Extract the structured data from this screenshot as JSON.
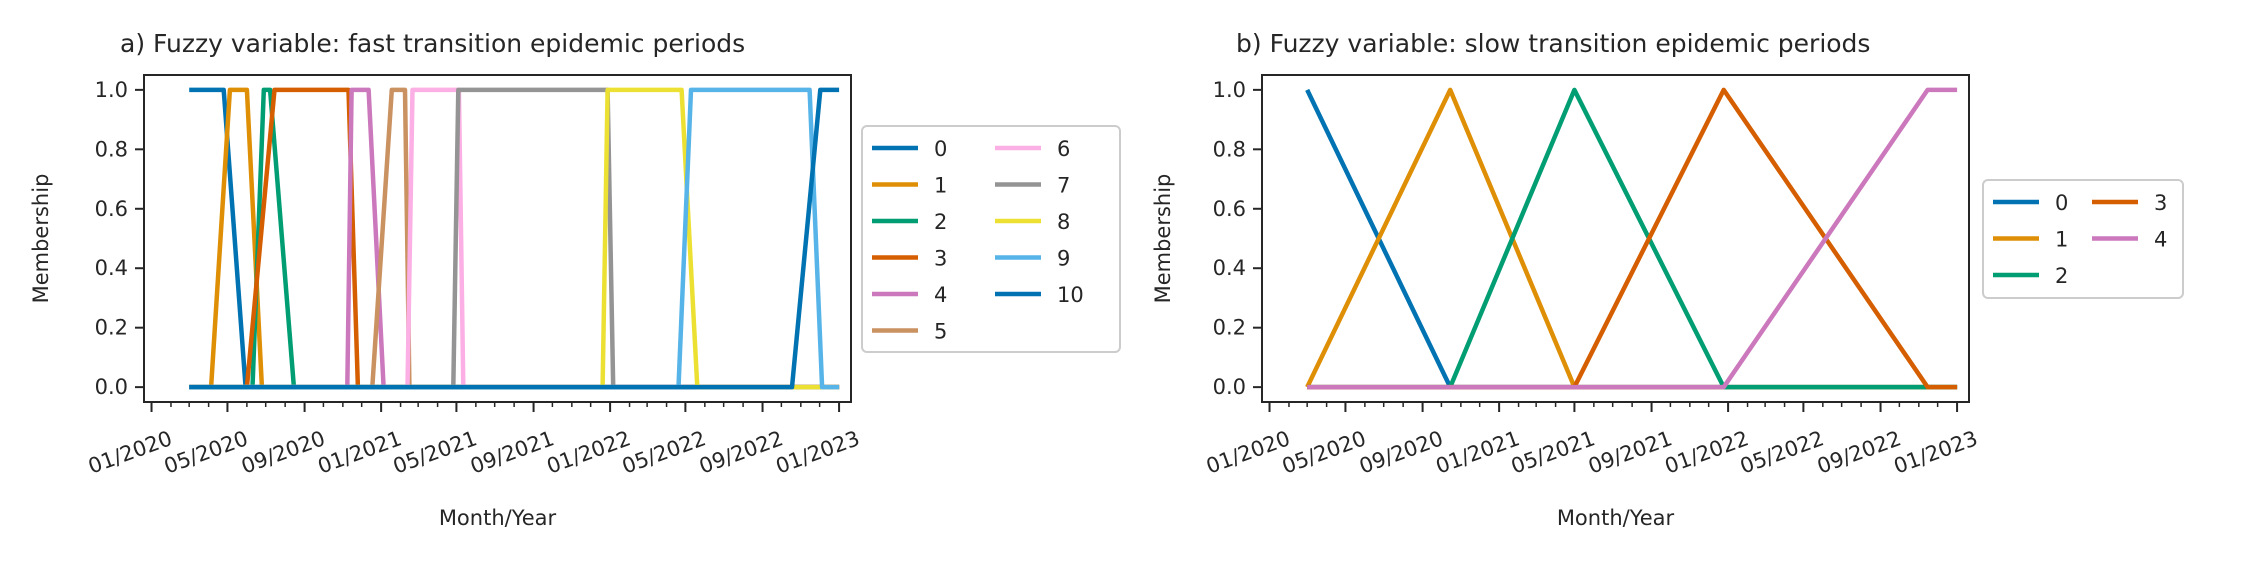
{
  "chart_data": [
    {
      "type": "line",
      "title": "a) Fuzzy variable: fast transition epidemic periods",
      "xlabel": "Month/Year",
      "ylabel": "Membership",
      "ylim": [
        -0.05,
        1.05
      ],
      "x_ticks": [
        "01/2020",
        "05/2020",
        "09/2020",
        "01/2021",
        "05/2021",
        "09/2021",
        "01/2022",
        "05/2022",
        "09/2022",
        "01/2023"
      ],
      "y_ticks": [
        "0.0",
        "0.2",
        "0.4",
        "0.6",
        "0.8",
        "1.0"
      ],
      "legend": {
        "placement": "outside-right",
        "columns": 2
      },
      "series": [
        {
          "name": "0",
          "color": "#0173b2",
          "points": [
            [
              "2020-03-01",
              1
            ],
            [
              "2020-04-25",
              1
            ],
            [
              "2020-05-30",
              0
            ],
            [
              "2023-01-01",
              0
            ]
          ]
        },
        {
          "name": "1",
          "color": "#de8f05",
          "points": [
            [
              "2020-03-01",
              0
            ],
            [
              "2020-04-05",
              0
            ],
            [
              "2020-05-05",
              1
            ],
            [
              "2020-06-01",
              1
            ],
            [
              "2020-06-25",
              0
            ],
            [
              "2023-01-01",
              0
            ]
          ]
        },
        {
          "name": "2",
          "color": "#029e73",
          "points": [
            [
              "2020-03-01",
              0
            ],
            [
              "2020-06-10",
              0
            ],
            [
              "2020-06-28",
              1
            ],
            [
              "2020-07-08",
              1
            ],
            [
              "2020-08-15",
              0
            ],
            [
              "2023-01-01",
              0
            ]
          ]
        },
        {
          "name": "3",
          "color": "#d55e00",
          "points": [
            [
              "2020-03-01",
              0
            ],
            [
              "2020-06-01",
              0
            ],
            [
              "2020-07-15",
              1
            ],
            [
              "2020-11-10",
              1
            ],
            [
              "2020-11-25",
              0
            ],
            [
              "2023-01-01",
              0
            ]
          ]
        },
        {
          "name": "4",
          "color": "#cc78bc",
          "points": [
            [
              "2020-03-01",
              0
            ],
            [
              "2020-11-08",
              0
            ],
            [
              "2020-11-15",
              1
            ],
            [
              "2020-12-12",
              1
            ],
            [
              "2021-01-05",
              0
            ],
            [
              "2023-01-01",
              0
            ]
          ]
        },
        {
          "name": "5",
          "color": "#ca9161",
          "points": [
            [
              "2020-03-01",
              0
            ],
            [
              "2020-12-18",
              0
            ],
            [
              "2021-01-18",
              1
            ],
            [
              "2021-02-08",
              1
            ],
            [
              "2021-02-15",
              0
            ],
            [
              "2023-01-01",
              0
            ]
          ]
        },
        {
          "name": "6",
          "color": "#fbafe4",
          "points": [
            [
              "2020-03-01",
              0
            ],
            [
              "2021-02-12",
              0
            ],
            [
              "2021-02-20",
              1
            ],
            [
              "2021-05-05",
              1
            ],
            [
              "2021-05-12",
              0
            ],
            [
              "2023-01-01",
              0
            ]
          ]
        },
        {
          "name": "7",
          "color": "#949494",
          "points": [
            [
              "2020-03-01",
              0
            ],
            [
              "2021-04-26",
              0
            ],
            [
              "2021-05-04",
              1
            ],
            [
              "2021-12-28",
              1
            ],
            [
              "2022-01-06",
              0
            ],
            [
              "2023-01-01",
              0
            ]
          ]
        },
        {
          "name": "8",
          "color": "#ece133",
          "points": [
            [
              "2020-03-01",
              0
            ],
            [
              "2021-12-20",
              0
            ],
            [
              "2021-12-28",
              1
            ],
            [
              "2022-04-25",
              1
            ],
            [
              "2022-05-20",
              0
            ],
            [
              "2022-11-01",
              0
            ],
            [
              "2022-11-15",
              0
            ],
            [
              "2023-01-01",
              0
            ]
          ]
        },
        {
          "name": "9",
          "color": "#56b4e9",
          "points": [
            [
              "2020-03-01",
              0
            ],
            [
              "2022-04-20",
              0
            ],
            [
              "2022-05-10",
              1
            ],
            [
              "2022-11-15",
              1
            ],
            [
              "2022-12-05",
              0
            ],
            [
              "2023-01-01",
              0
            ]
          ]
        },
        {
          "name": "10",
          "color": "#0173b2",
          "points": [
            [
              "2020-03-01",
              0
            ],
            [
              "2022-10-18",
              0
            ],
            [
              "2022-12-02",
              1
            ],
            [
              "2023-01-01",
              1
            ]
          ]
        }
      ]
    },
    {
      "type": "line",
      "title": "b) Fuzzy variable: slow transition epidemic periods",
      "xlabel": "Month/Year",
      "ylabel": "Membership",
      "ylim": [
        -0.05,
        1.05
      ],
      "x_ticks": [
        "01/2020",
        "05/2020",
        "09/2020",
        "01/2021",
        "05/2021",
        "09/2021",
        "01/2022",
        "05/2022",
        "09/2022",
        "01/2023"
      ],
      "y_ticks": [
        "0.0",
        "0.2",
        "0.4",
        "0.6",
        "0.8",
        "1.0"
      ],
      "legend": {
        "placement": "outside-right",
        "columns": 2
      },
      "series": [
        {
          "name": "0",
          "color": "#0173b2",
          "points": [
            [
              "2020-03-01",
              1
            ],
            [
              "2020-10-15",
              0
            ],
            [
              "2023-01-01",
              0
            ]
          ]
        },
        {
          "name": "1",
          "color": "#de8f05",
          "points": [
            [
              "2020-03-01",
              0
            ],
            [
              "2020-10-15",
              1
            ],
            [
              "2021-05-01",
              0
            ],
            [
              "2023-01-01",
              0
            ]
          ]
        },
        {
          "name": "2",
          "color": "#029e73",
          "points": [
            [
              "2020-03-01",
              0
            ],
            [
              "2020-10-15",
              0
            ],
            [
              "2021-05-01",
              1
            ],
            [
              "2021-12-25",
              0
            ],
            [
              "2023-01-01",
              0
            ]
          ]
        },
        {
          "name": "3",
          "color": "#d55e00",
          "points": [
            [
              "2020-03-01",
              0
            ],
            [
              "2021-05-01",
              0
            ],
            [
              "2021-12-25",
              1
            ],
            [
              "2022-11-15",
              0
            ],
            [
              "2023-01-01",
              0
            ]
          ]
        },
        {
          "name": "4",
          "color": "#cc78bc",
          "points": [
            [
              "2020-03-01",
              0
            ],
            [
              "2021-12-25",
              0
            ],
            [
              "2022-11-15",
              1
            ],
            [
              "2023-01-01",
              1
            ]
          ]
        }
      ]
    }
  ]
}
